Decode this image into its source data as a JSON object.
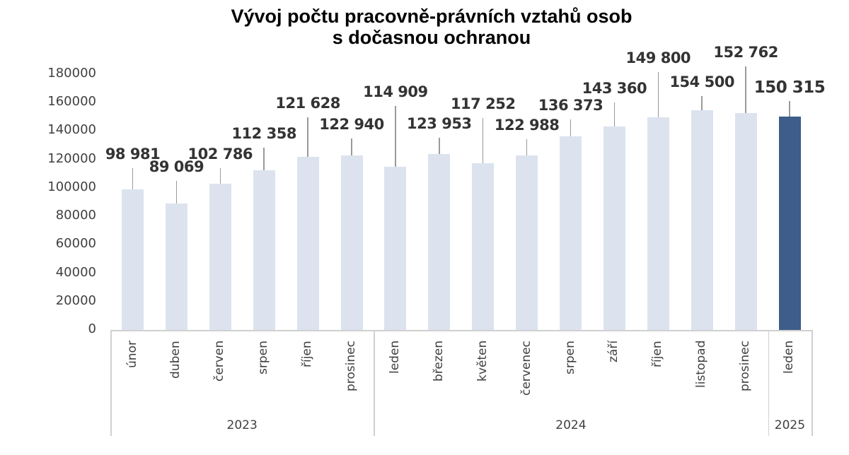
{
  "chart_data": {
    "type": "bar",
    "title": "Vývoj počtu pracovně-právních vztahů osob s dočasnou ochranou",
    "title_lines": [
      "Vývoj počtu pracovně-právních vztahů osob",
      "s dočasnou ochranou"
    ],
    "xlabel": "",
    "ylabel": "",
    "ylim": [
      0,
      180000
    ],
    "yticks": [
      "180000",
      "160000",
      "140000",
      "120000",
      "100000",
      "80000",
      "60000",
      "40000",
      "20000",
      "0"
    ],
    "grid": false,
    "legend": null,
    "categories": [
      "únor",
      "duben",
      "červen",
      "srpen",
      "říjen",
      "prosinec",
      "leden",
      "březen",
      "květen",
      "červenec",
      "srpen",
      "září",
      "říjen",
      "listopad",
      "prosinec",
      "leden"
    ],
    "groups": [
      {
        "label": "2023",
        "count": 6
      },
      {
        "label": "2024",
        "count": 9
      },
      {
        "label": "2025",
        "count": 1
      }
    ],
    "values": [
      98981,
      89069,
      102786,
      112358,
      121628,
      122940,
      114909,
      123953,
      117252,
      122988,
      136373,
      143360,
      149800,
      154500,
      152762,
      150315
    ],
    "data_labels": [
      "98 981",
      "89 069",
      "102 786",
      "112 358",
      "121 628",
      "122 940",
      "114 909",
      "123 953",
      "117 252",
      "122 988",
      "136 373",
      "143 360",
      "149 800",
      "154 500",
      "152 762",
      "150 315"
    ],
    "label_offsets": [
      34,
      36,
      26,
      36,
      60,
      28,
      90,
      27,
      68,
      27,
      28,
      38,
      68,
      24,
      70,
      26
    ],
    "colors": {
      "bar": "#dce3ef",
      "highlight_bar": "#3e5d8a",
      "highlight_index": 15
    }
  }
}
